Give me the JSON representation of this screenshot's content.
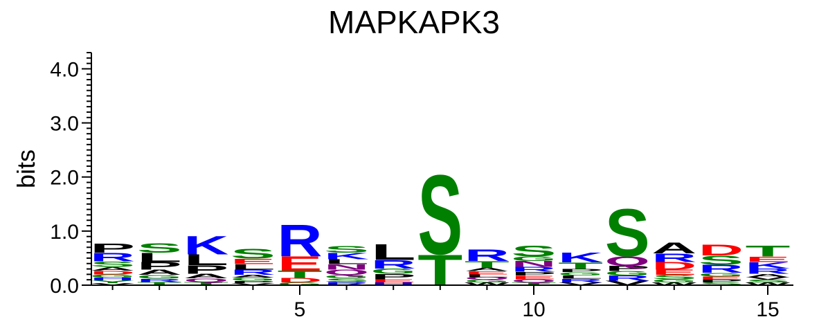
{
  "chart_data": {
    "type": "sequence-logo",
    "title": "MAPKAPK3",
    "ylabel": "bits",
    "xlabel": "",
    "ylim": [
      0,
      4.3
    ],
    "y_ticks": [
      "0.0",
      "1.0",
      "2.0",
      "3.0",
      "4.0"
    ],
    "y_tick_values": [
      0,
      1,
      2,
      3,
      4
    ],
    "x_ticks": [
      "5",
      "10",
      "15"
    ],
    "x_tick_values": [
      5,
      10,
      15
    ],
    "xlim": [
      0.5,
      15.5
    ],
    "colors": {
      "A": "#000000",
      "C": "#008000",
      "D": "#ff0000",
      "E": "#ff0000",
      "F": "#000000",
      "G": "#008000",
      "H": "#0000ff",
      "I": "#000000",
      "K": "#0000ff",
      "L": "#000000",
      "M": "#000000",
      "N": "#800080",
      "P": "#000000",
      "Q": "#800080",
      "R": "#0000ff",
      "S": "#008000",
      "T": "#008000",
      "V": "#000000",
      "W": "#000000",
      "Y": "#008000"
    },
    "positions": [
      {
        "pos": 1,
        "letters": [
          [
            "V",
            0.04
          ],
          [
            "Y",
            0.05
          ],
          [
            "H",
            0.05
          ],
          [
            "G",
            0.06
          ],
          [
            "D",
            0.07
          ],
          [
            "A",
            0.07
          ],
          [
            "S",
            0.1
          ],
          [
            "R",
            0.16
          ],
          [
            "P",
            0.17
          ]
        ]
      },
      {
        "pos": 2,
        "letters": [
          [
            "T",
            0.06
          ],
          [
            "R",
            0.06
          ],
          [
            "G",
            0.07
          ],
          [
            "A",
            0.1
          ],
          [
            "P",
            0.14
          ],
          [
            "L",
            0.17
          ],
          [
            "S",
            0.18
          ]
        ]
      },
      {
        "pos": 3,
        "letters": [
          [
            "T",
            0.06
          ],
          [
            "Q",
            0.07
          ],
          [
            "A",
            0.08
          ],
          [
            "P",
            0.16
          ],
          [
            "L",
            0.2
          ],
          [
            "K",
            0.35
          ]
        ]
      },
      {
        "pos": 4,
        "letters": [
          [
            "V",
            0.04
          ],
          [
            "P",
            0.04
          ],
          [
            "G",
            0.06
          ],
          [
            "A",
            0.05
          ],
          [
            "R",
            0.1
          ],
          [
            "L",
            0.1
          ],
          [
            "E",
            0.1
          ],
          [
            "S",
            0.19
          ]
        ]
      },
      {
        "pos": 5,
        "letters": [
          [
            "G",
            0.05
          ],
          [
            "D",
            0.08
          ],
          [
            "T",
            0.14
          ],
          [
            "E",
            0.27
          ],
          [
            "R",
            0.6
          ]
        ]
      },
      {
        "pos": 6,
        "letters": [
          [
            "R",
            0.06
          ],
          [
            "S",
            0.07
          ],
          [
            "G",
            0.06
          ],
          [
            "Q",
            0.1
          ],
          [
            "N",
            0.1
          ],
          [
            "L",
            0.09
          ],
          [
            "K",
            0.12
          ],
          [
            "S",
            0.13
          ]
        ]
      },
      {
        "pos": 7,
        "letters": [
          [
            "H",
            0.05
          ],
          [
            "E",
            0.06
          ],
          [
            "P",
            0.1
          ],
          [
            "G",
            0.1
          ],
          [
            "R",
            0.16
          ],
          [
            "L",
            0.3
          ]
        ]
      },
      {
        "pos": 8,
        "letters": [
          [
            "T",
            0.58
          ],
          [
            "S",
            1.5
          ]
        ]
      },
      {
        "pos": 9,
        "letters": [
          [
            "W",
            0.05
          ],
          [
            "G",
            0.05
          ],
          [
            "Q",
            0.05
          ],
          [
            "L",
            0.05
          ],
          [
            "E",
            0.06
          ],
          [
            "A",
            0.06
          ],
          [
            "T",
            0.13
          ],
          [
            "R",
            0.22
          ]
        ]
      },
      {
        "pos": 10,
        "letters": [
          [
            "T",
            0.05
          ],
          [
            "Q",
            0.06
          ],
          [
            "E",
            0.07
          ],
          [
            "P",
            0.07
          ],
          [
            "R",
            0.09
          ],
          [
            "N",
            0.11
          ],
          [
            "G",
            0.08
          ],
          [
            "S",
            0.2
          ]
        ]
      },
      {
        "pos": 11,
        "letters": [
          [
            "V",
            0.05
          ],
          [
            "R",
            0.07
          ],
          [
            "L",
            0.06
          ],
          [
            "G",
            0.06
          ],
          [
            "P",
            0.06
          ],
          [
            "T",
            0.12
          ],
          [
            "K",
            0.19
          ]
        ]
      },
      {
        "pos": 12,
        "letters": [
          [
            "V",
            0.08
          ],
          [
            "R",
            0.1
          ],
          [
            "G",
            0.08
          ],
          [
            "P",
            0.1
          ],
          [
            "Q",
            0.18
          ],
          [
            "S",
            0.9
          ]
        ]
      },
      {
        "pos": 13,
        "letters": [
          [
            "W",
            0.05
          ],
          [
            "G",
            0.06
          ],
          [
            "S",
            0.08
          ],
          [
            "E",
            0.1
          ],
          [
            "D",
            0.14
          ],
          [
            "R",
            0.16
          ],
          [
            "A",
            0.2
          ]
        ]
      },
      {
        "pos": 14,
        "letters": [
          [
            "S",
            0.05
          ],
          [
            "P",
            0.05
          ],
          [
            "E",
            0.06
          ],
          [
            "G",
            0.07
          ],
          [
            "R",
            0.15
          ],
          [
            "S",
            0.17
          ],
          [
            "D",
            0.2
          ]
        ]
      },
      {
        "pos": 15,
        "letters": [
          [
            "W",
            0.05
          ],
          [
            "S",
            0.05
          ],
          [
            "V",
            0.05
          ],
          [
            "A",
            0.06
          ],
          [
            "R",
            0.1
          ],
          [
            "K",
            0.12
          ],
          [
            "E",
            0.1
          ],
          [
            "T",
            0.2
          ]
        ]
      }
    ]
  }
}
